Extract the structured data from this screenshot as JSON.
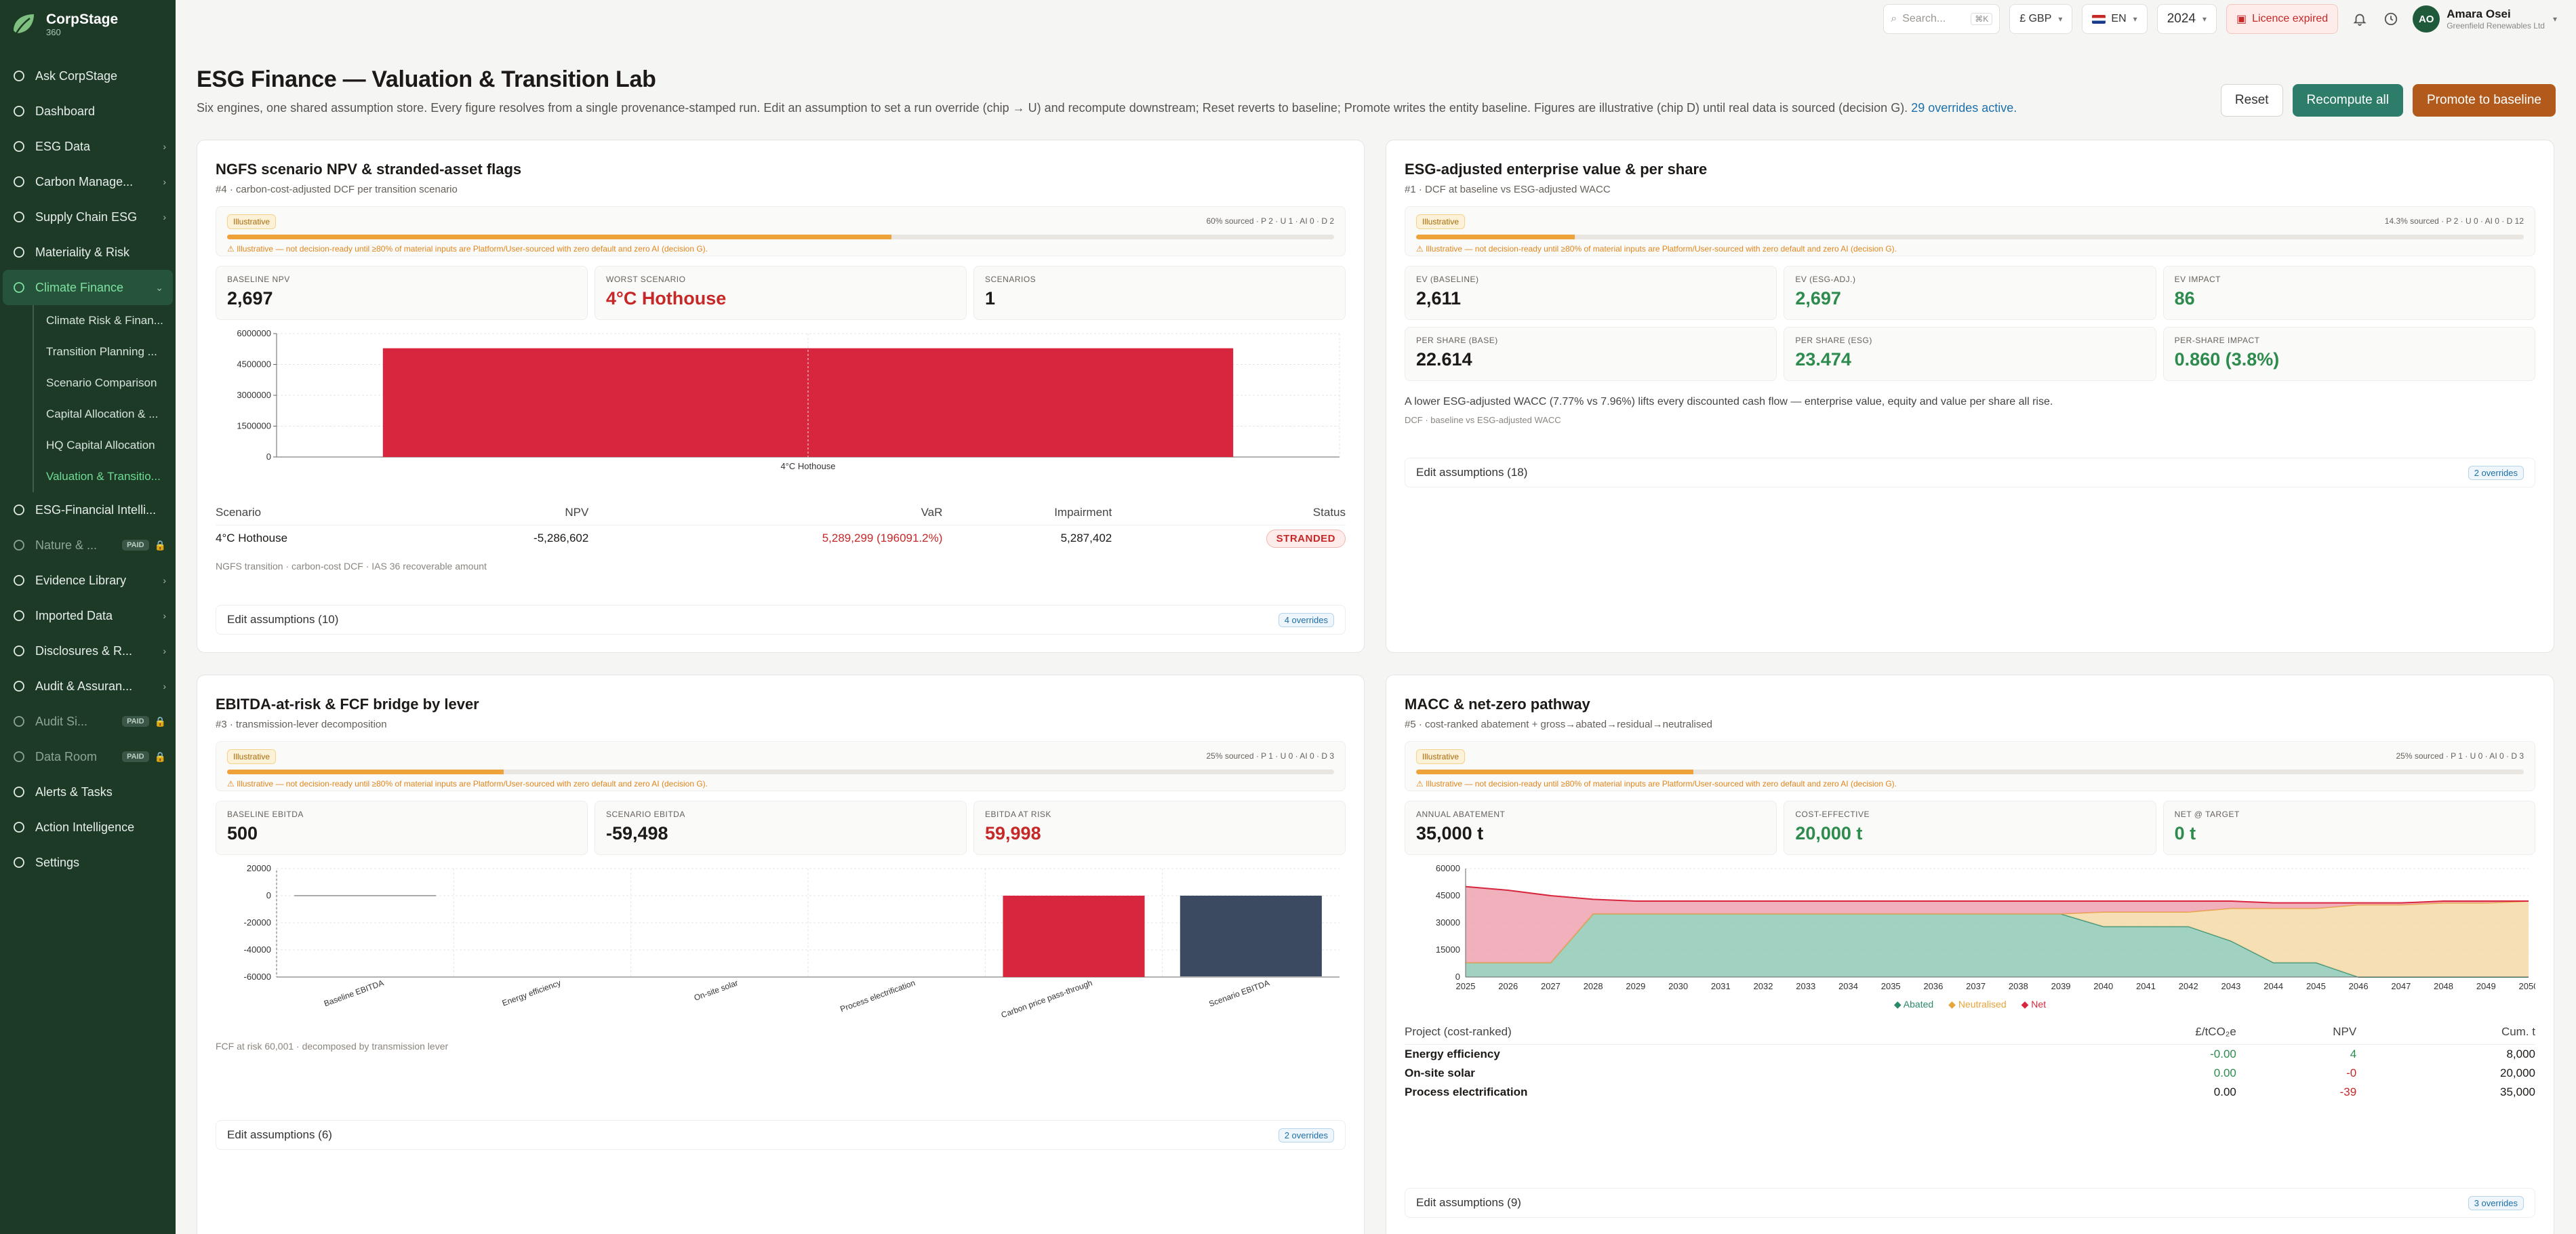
{
  "brand": {
    "name": "CorpStage",
    "sub": "360"
  },
  "sidebar": {
    "items": [
      {
        "label": "Ask CorpStage",
        "icon": "chat-icon",
        "chevron": false
      },
      {
        "label": "Dashboard",
        "icon": "dashboard-icon",
        "chevron": false
      },
      {
        "label": "ESG Data",
        "icon": "database-icon",
        "chevron": true
      },
      {
        "label": "Carbon Manage...",
        "icon": "leaf-icon",
        "chevron": true
      },
      {
        "label": "Supply Chain ESG",
        "icon": "truck-icon",
        "chevron": true
      },
      {
        "label": "Materiality & Risk",
        "icon": "target-icon",
        "chevron": false
      },
      {
        "label": "Climate Finance",
        "icon": "thermometer-icon",
        "chevron": true,
        "active": true
      }
    ],
    "sub_items": [
      "Climate Risk & Finan...",
      "Transition Planning ...",
      "Scenario Comparison",
      "Capital Allocation & ...",
      "HQ Capital Allocation",
      "Valuation & Transitio..."
    ],
    "items_after": [
      {
        "label": "ESG-Financial Intelli...",
        "icon": "chart-icon",
        "chevron": false
      },
      {
        "label": "Nature & ...",
        "icon": "tree-icon",
        "paid": "PAID"
      },
      {
        "label": "Evidence Library",
        "icon": "book-icon",
        "chevron": true
      },
      {
        "label": "Imported Data",
        "icon": "import-icon",
        "chevron": true
      },
      {
        "label": "Disclosures & R...",
        "icon": "document-icon",
        "chevron": true
      },
      {
        "label": "Audit & Assuran...",
        "icon": "shield-icon",
        "chevron": true
      },
      {
        "label": "Audit Si...",
        "icon": "signature-icon",
        "paid": "PAID"
      },
      {
        "label": "Data Room",
        "icon": "folder-icon",
        "paid": "PAID"
      },
      {
        "label": "Alerts & Tasks",
        "icon": "bell-icon",
        "chevron": false
      },
      {
        "label": "Action Intelligence",
        "icon": "spark-icon",
        "chevron": false
      },
      {
        "label": "Settings",
        "icon": "gear-icon",
        "chevron": false
      }
    ]
  },
  "topbar": {
    "search_placeholder": "Search...",
    "search_kbd": "⌘K",
    "currency": "£ GBP",
    "language": "EN",
    "year": "2024",
    "licence": "Licence expired",
    "user_name": "Amara Osei",
    "user_org": "Greenfield Renewables Ltd",
    "user_initials": "AO"
  },
  "page": {
    "title": "ESG Finance — Valuation & Transition Lab",
    "desc": "Six engines, one shared assumption store. Every figure resolves from a single provenance-stamped run. Edit an assumption to set a run override (chip → U) and recompute downstream; Reset reverts to baseline; Promote writes the entity baseline. Figures are illustrative (chip D) until real data is sourced (decision G).",
    "overrides_link": "29 overrides active.",
    "reset": "Reset",
    "recompute": "Recompute all",
    "promote": "Promote to baseline"
  },
  "common": {
    "chip": "Illustrative",
    "warn": "⚠ Illustrative — not decision-ready until ≥80% of material inputs are Platform/User-sourced with zero default and zero AI (decision G)."
  },
  "card1": {
    "title": "NGFS scenario NPV & stranded-asset flags",
    "sub": "#4 · carbon-cost-adjusted DCF per transition scenario",
    "prov": "60% sourced · P 2 · U 1 · AI 0 · D 2",
    "sourced_fraction": 0.6,
    "kpis": [
      {
        "k": "BASELINE NPV",
        "v": "2,697"
      },
      {
        "k": "WORST SCENARIO",
        "v": "4°C Hothouse"
      },
      {
        "k": "SCENARIOS",
        "v": "1"
      }
    ],
    "chart_data": {
      "type": "bar",
      "categories": [
        "4°C Hothouse"
      ],
      "values": [
        5287402
      ],
      "ylim": [
        0,
        6000000
      ],
      "yticks": [
        "6000000",
        "4500000",
        "3000000",
        "1500000",
        "0"
      ],
      "color": "#d7263d"
    },
    "table": {
      "headers": [
        "Scenario",
        "NPV",
        "VaR",
        "Impairment",
        "Status"
      ],
      "row": {
        "scenario": "4°C Hothouse",
        "npv": "-5,286,602",
        "var": "5,289,299 (196091.2%)",
        "impairment": "5,287,402",
        "status": "STRANDED"
      }
    },
    "note": "NGFS transition · carbon-cost DCF · IAS 36 recoverable amount",
    "edit": "Edit assumptions (10)",
    "overrides": "4 overrides"
  },
  "card2": {
    "title": "ESG-adjusted enterprise value & per share",
    "sub": "#1 · DCF at baseline vs ESG-adjusted WACC",
    "prov": "14.3% sourced · P 2 · U 0 · AI 0 · D 12",
    "sourced_fraction": 0.143,
    "kpis": [
      {
        "k": "EV (BASELINE)",
        "v": "2,611"
      },
      {
        "k": "EV (ESG-ADJ.)",
        "v": "2,697"
      },
      {
        "k": "EV IMPACT",
        "v": "86"
      },
      {
        "k": "PER SHARE (BASE)",
        "v": "22.614"
      },
      {
        "k": "PER SHARE (ESG)",
        "v": "23.474"
      },
      {
        "k": "PER-SHARE IMPACT",
        "v": "0.860 (3.8%)"
      }
    ],
    "explain": "A lower ESG-adjusted WACC (7.77% vs 7.96%) lifts every discounted cash flow — enterprise value, equity and value per share all rise.",
    "note": "DCF · baseline vs ESG-adjusted WACC",
    "edit": "Edit assumptions (18)",
    "overrides": "2 overrides"
  },
  "card3": {
    "title": "EBITDA-at-risk & FCF bridge by lever",
    "sub": "#3 · transmission-lever decomposition",
    "prov": "25% sourced · P 1 · U 0 · AI 0 · D 3",
    "sourced_fraction": 0.25,
    "kpis": [
      {
        "k": "BASELINE EBITDA",
        "v": "500"
      },
      {
        "k": "SCENARIO EBITDA",
        "v": "-59,498"
      },
      {
        "k": "EBITDA AT RISK",
        "v": "59,998"
      }
    ],
    "chart_data": {
      "type": "bar",
      "categories": [
        "Baseline EBITDA",
        "Energy efficiency",
        "On-site solar",
        "Process electrification",
        "Carbon price pass-through",
        "Scenario EBITDA"
      ],
      "values": [
        500,
        0,
        0,
        0,
        -59998,
        -59498
      ],
      "ylim": [
        -60000,
        20000
      ],
      "yticks": [
        "20000",
        "0",
        "-20000",
        "-40000",
        "-60000"
      ]
    },
    "note": "FCF at risk 60,001 · decomposed by transmission lever",
    "edit": "Edit assumptions (6)",
    "overrides": "2 overrides"
  },
  "card4": {
    "title": "MACC & net-zero pathway",
    "sub": "#5 · cost-ranked abatement + gross→abated→residual→neutralised",
    "prov": "25% sourced · P 1 · U 0 · AI 0 · D 3",
    "sourced_fraction": 0.25,
    "kpis": [
      {
        "k": "ANNUAL ABATEMENT",
        "v": "35,000 t"
      },
      {
        "k": "COST-EFFECTIVE",
        "v": "20,000 t"
      },
      {
        "k": "NET @ TARGET",
        "v": "0 t"
      }
    ],
    "chart_data": {
      "type": "area",
      "x": [
        "2025",
        "2026",
        "2027",
        "2028",
        "2029",
        "2030",
        "2031",
        "2032",
        "2033",
        "2034",
        "2035",
        "2036",
        "2037",
        "2038",
        "2039",
        "2040",
        "2041",
        "2042",
        "2043",
        "2044",
        "2045",
        "2046",
        "2047",
        "2048",
        "2049",
        "2050"
      ],
      "series": [
        {
          "name": "Abated",
          "values": [
            8000,
            8000,
            8000,
            35000,
            35000,
            35000,
            35000,
            35000,
            35000,
            35000,
            35000,
            35000,
            35000,
            35000,
            35000,
            28000,
            28000,
            28000,
            20000,
            8000,
            8000,
            0,
            0,
            0,
            0,
            0
          ]
        },
        {
          "name": "Neutralised",
          "values": [
            0,
            0,
            0,
            0,
            0,
            0,
            0,
            0,
            0,
            0,
            0,
            0,
            0,
            0,
            0,
            8000,
            8000,
            8000,
            18000,
            30000,
            30000,
            40000,
            40000,
            41000,
            41000,
            42000
          ]
        },
        {
          "name": "Net",
          "values": [
            42000,
            40000,
            37000,
            8000,
            7000,
            7000,
            7000,
            7000,
            7000,
            7000,
            7000,
            7000,
            7000,
            7000,
            7000,
            6000,
            6000,
            6000,
            4000,
            3000,
            3000,
            1000,
            1000,
            1000,
            1000,
            0
          ]
        }
      ],
      "ylim": [
        0,
        60000
      ],
      "yticks": [
        "60000",
        "45000",
        "30000",
        "15000",
        "0"
      ]
    },
    "legend": [
      "Abated",
      "Neutralised",
      "Net"
    ],
    "table": {
      "headers": [
        "Project (cost-ranked)",
        "£/tCO₂e",
        "NPV",
        "Cum. t"
      ],
      "rows": [
        {
          "p": "Energy efficiency",
          "c": "-0.00",
          "n": "4",
          "t": "8,000"
        },
        {
          "p": "On-site solar",
          "c": "0.00",
          "n": "-0",
          "t": "20,000"
        },
        {
          "p": "Process electrification",
          "c": "0.00",
          "n": "-39",
          "t": "35,000"
        }
      ]
    },
    "edit": "Edit assumptions (9)",
    "overrides": "3 overrides"
  }
}
